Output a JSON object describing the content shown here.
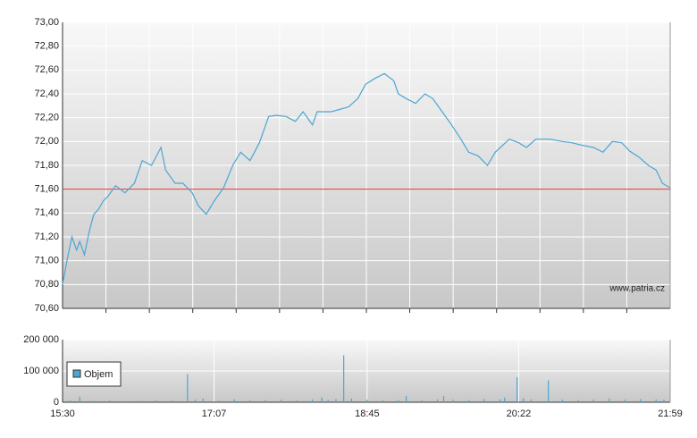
{
  "chart_data": [
    {
      "type": "line",
      "watermark": "www.patria.cz",
      "xlim": [
        930,
        1319
      ],
      "ylim": [
        70.6,
        73
      ],
      "yticks": [
        {
          "value": 70.6,
          "label": "70,60"
        },
        {
          "value": 70.8,
          "label": "70,80"
        },
        {
          "value": 71,
          "label": "71,00"
        },
        {
          "value": 71.2,
          "label": "71,20"
        },
        {
          "value": 71.4,
          "label": "71,40"
        },
        {
          "value": 71.6,
          "label": "71,60"
        },
        {
          "value": 71.8,
          "label": "71,80"
        },
        {
          "value": 72,
          "label": "72,00"
        },
        {
          "value": 72.2,
          "label": "72,20"
        },
        {
          "value": 72.4,
          "label": "72,40"
        },
        {
          "value": 72.6,
          "label": "72,60"
        },
        {
          "value": 72.8,
          "label": "72,80"
        },
        {
          "value": 73,
          "label": "73,00"
        }
      ],
      "grid": true,
      "reference_line": {
        "value": 71.6,
        "color": "#e83030"
      },
      "series": [
        {
          "color": "#4ba6d2",
          "x": [
            930,
            933,
            936,
            939,
            941,
            944,
            947,
            950,
            953,
            956,
            959,
            964,
            970,
            976,
            981,
            987,
            993,
            996,
            1002,
            1007,
            1013,
            1017,
            1022,
            1027,
            1033,
            1039,
            1044,
            1050,
            1056,
            1062,
            1067,
            1073,
            1079,
            1084,
            1090,
            1093,
            1102,
            1113,
            1119,
            1124,
            1130,
            1136,
            1142,
            1145,
            1150,
            1156,
            1162,
            1167,
            1173,
            1179,
            1185,
            1190,
            1196,
            1202,
            1207,
            1216,
            1222,
            1227,
            1233,
            1242,
            1250,
            1256,
            1262,
            1270,
            1276,
            1282,
            1288,
            1293,
            1299,
            1305,
            1310,
            1314,
            1319
          ],
          "values": [
            70.8,
            71.01,
            71.2,
            71.09,
            71.16,
            71.05,
            71.24,
            71.39,
            71.43,
            71.5,
            71.54,
            71.63,
            71.57,
            71.65,
            71.84,
            71.8,
            71.95,
            71.76,
            71.65,
            71.65,
            71.57,
            71.46,
            71.39,
            71.5,
            71.61,
            71.8,
            71.91,
            71.84,
            71.99,
            72.21,
            72.22,
            72.21,
            72.17,
            72.25,
            72.14,
            72.25,
            72.25,
            72.29,
            72.36,
            72.48,
            72.53,
            72.57,
            72.51,
            72.4,
            72.36,
            72.32,
            72.4,
            72.36,
            72.25,
            72.14,
            72.02,
            71.91,
            71.88,
            71.8,
            71.91,
            72.02,
            71.99,
            71.95,
            72.02,
            72.02,
            72.0,
            71.99,
            71.97,
            71.95,
            71.91,
            72.0,
            71.99,
            71.92,
            71.87,
            71.8,
            71.76,
            71.65,
            71.61
          ]
        }
      ]
    },
    {
      "type": "bar",
      "xlim": [
        930,
        1319
      ],
      "xticks": [
        {
          "value": 930,
          "label": "15:30"
        },
        {
          "value": 1027,
          "label": "17:07"
        },
        {
          "value": 1125,
          "label": "18:45"
        },
        {
          "value": 1222,
          "label": "20:22"
        },
        {
          "value": 1319,
          "label": "21:59"
        }
      ],
      "ylim": [
        0,
        200000
      ],
      "yticks": [
        0,
        {
          "value": 100000,
          "label": "100 000"
        },
        {
          "value": 200000,
          "label": "200 000"
        }
      ],
      "grid": true,
      "legend": "bottom-left",
      "series": [
        {
          "name": "Objem",
          "color": "#4ba6d2",
          "x": [
            935,
            941,
            950,
            960,
            970,
            980,
            990,
            1000,
            1010,
            1015,
            1020,
            1030,
            1040,
            1050,
            1060,
            1070,
            1080,
            1090,
            1096,
            1100,
            1105,
            1110,
            1115,
            1125,
            1135,
            1145,
            1150,
            1160,
            1170,
            1174,
            1180,
            1190,
            1200,
            1210,
            1213,
            1221,
            1225,
            1230,
            1241,
            1250,
            1260,
            1270,
            1280,
            1290,
            1300,
            1310,
            1315
          ],
          "values": [
            6000,
            18000,
            4000,
            5000,
            3000,
            4000,
            6000,
            5000,
            90000,
            8000,
            12000,
            5000,
            9000,
            6000,
            7000,
            8000,
            6000,
            9000,
            15000,
            7000,
            10000,
            150000,
            12000,
            8000,
            6000,
            7000,
            20000,
            6000,
            9000,
            20000,
            8000,
            7000,
            10000,
            9000,
            15000,
            80000,
            12000,
            9000,
            70000,
            8000,
            7000,
            9000,
            12000,
            8000,
            10000,
            9000,
            8000
          ]
        }
      ]
    }
  ]
}
